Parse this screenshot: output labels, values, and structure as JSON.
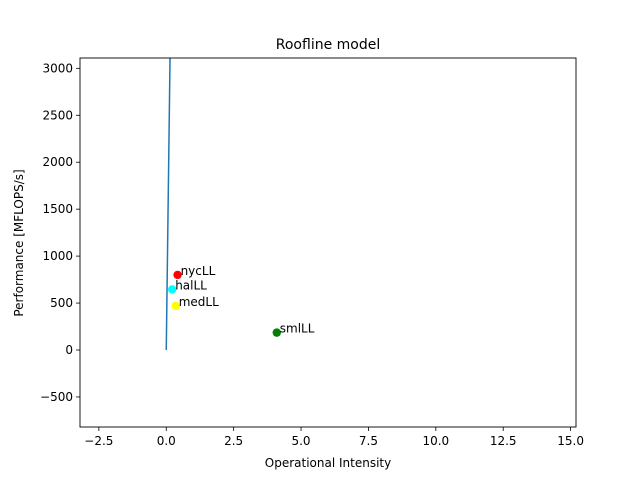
{
  "chart_data": {
    "type": "scatter",
    "title": "Roofline model",
    "xlabel": "Operational Intensity",
    "ylabel": "Performance [MFLOPS/s]",
    "xlim": [
      -3.2,
      15.2
    ],
    "ylim": [
      -820,
      3110
    ],
    "x_ticks": [
      -2.5,
      0.0,
      2.5,
      5.0,
      7.5,
      10.0,
      12.5,
      15.0
    ],
    "x_tick_labels": [
      "−2.5",
      "0.0",
      "2.5",
      "5.0",
      "7.5",
      "10.0",
      "12.5",
      "15.0"
    ],
    "y_ticks": [
      -500,
      0,
      500,
      1000,
      1500,
      2000,
      2500,
      3000
    ],
    "y_tick_labels": [
      "−500",
      "0",
      "500",
      "1000",
      "1500",
      "2000",
      "2500",
      "3000"
    ],
    "grid": false,
    "roofline": {
      "color": "#1f77b4",
      "points": [
        [
          0.0,
          0
        ],
        [
          0.14,
          3110
        ]
      ]
    },
    "points": [
      {
        "label": "nycLL",
        "x": 0.42,
        "y": 800,
        "color": "#ff0000"
      },
      {
        "label": "halLL",
        "x": 0.22,
        "y": 645,
        "color": "#00ffff"
      },
      {
        "label": "medLL",
        "x": 0.35,
        "y": 470,
        "color": "#ffff00"
      },
      {
        "label": "smlLL",
        "x": 4.1,
        "y": 185,
        "color": "#008000"
      }
    ]
  }
}
